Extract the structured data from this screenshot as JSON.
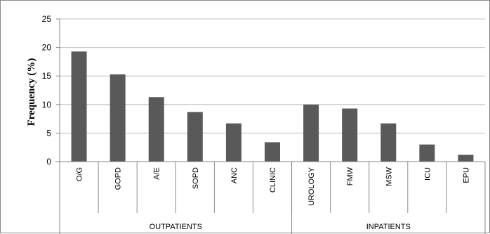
{
  "chart_data": {
    "type": "bar",
    "title": "",
    "xlabel": "",
    "ylabel": "Frequency (%)",
    "ylim": [
      0,
      25
    ],
    "yticks": [
      0,
      5,
      10,
      15,
      20,
      25
    ],
    "grid": true,
    "legend": "none",
    "categories": [
      "O/G",
      "GOPD",
      "A/E",
      "SOPD",
      "ANC",
      "CLINIC",
      "UROLOGY",
      "FMW",
      "MSW",
      "ICU",
      "EPU"
    ],
    "values": [
      19.3,
      15.3,
      11.3,
      8.7,
      6.7,
      3.4,
      10.0,
      9.3,
      6.7,
      3.0,
      1.2
    ],
    "groups": [
      {
        "label": "OUTPATIENTS",
        "categories": [
          "O/G",
          "GOPD",
          "A/E",
          "SOPD",
          "ANC",
          "CLINIC"
        ]
      },
      {
        "label": "INPATIENTS",
        "categories": [
          "UROLOGY",
          "FMW",
          "MSW",
          "ICU",
          "EPU"
        ]
      }
    ],
    "bar_color": "#595959",
    "grid_color": "#bfbfbf"
  }
}
